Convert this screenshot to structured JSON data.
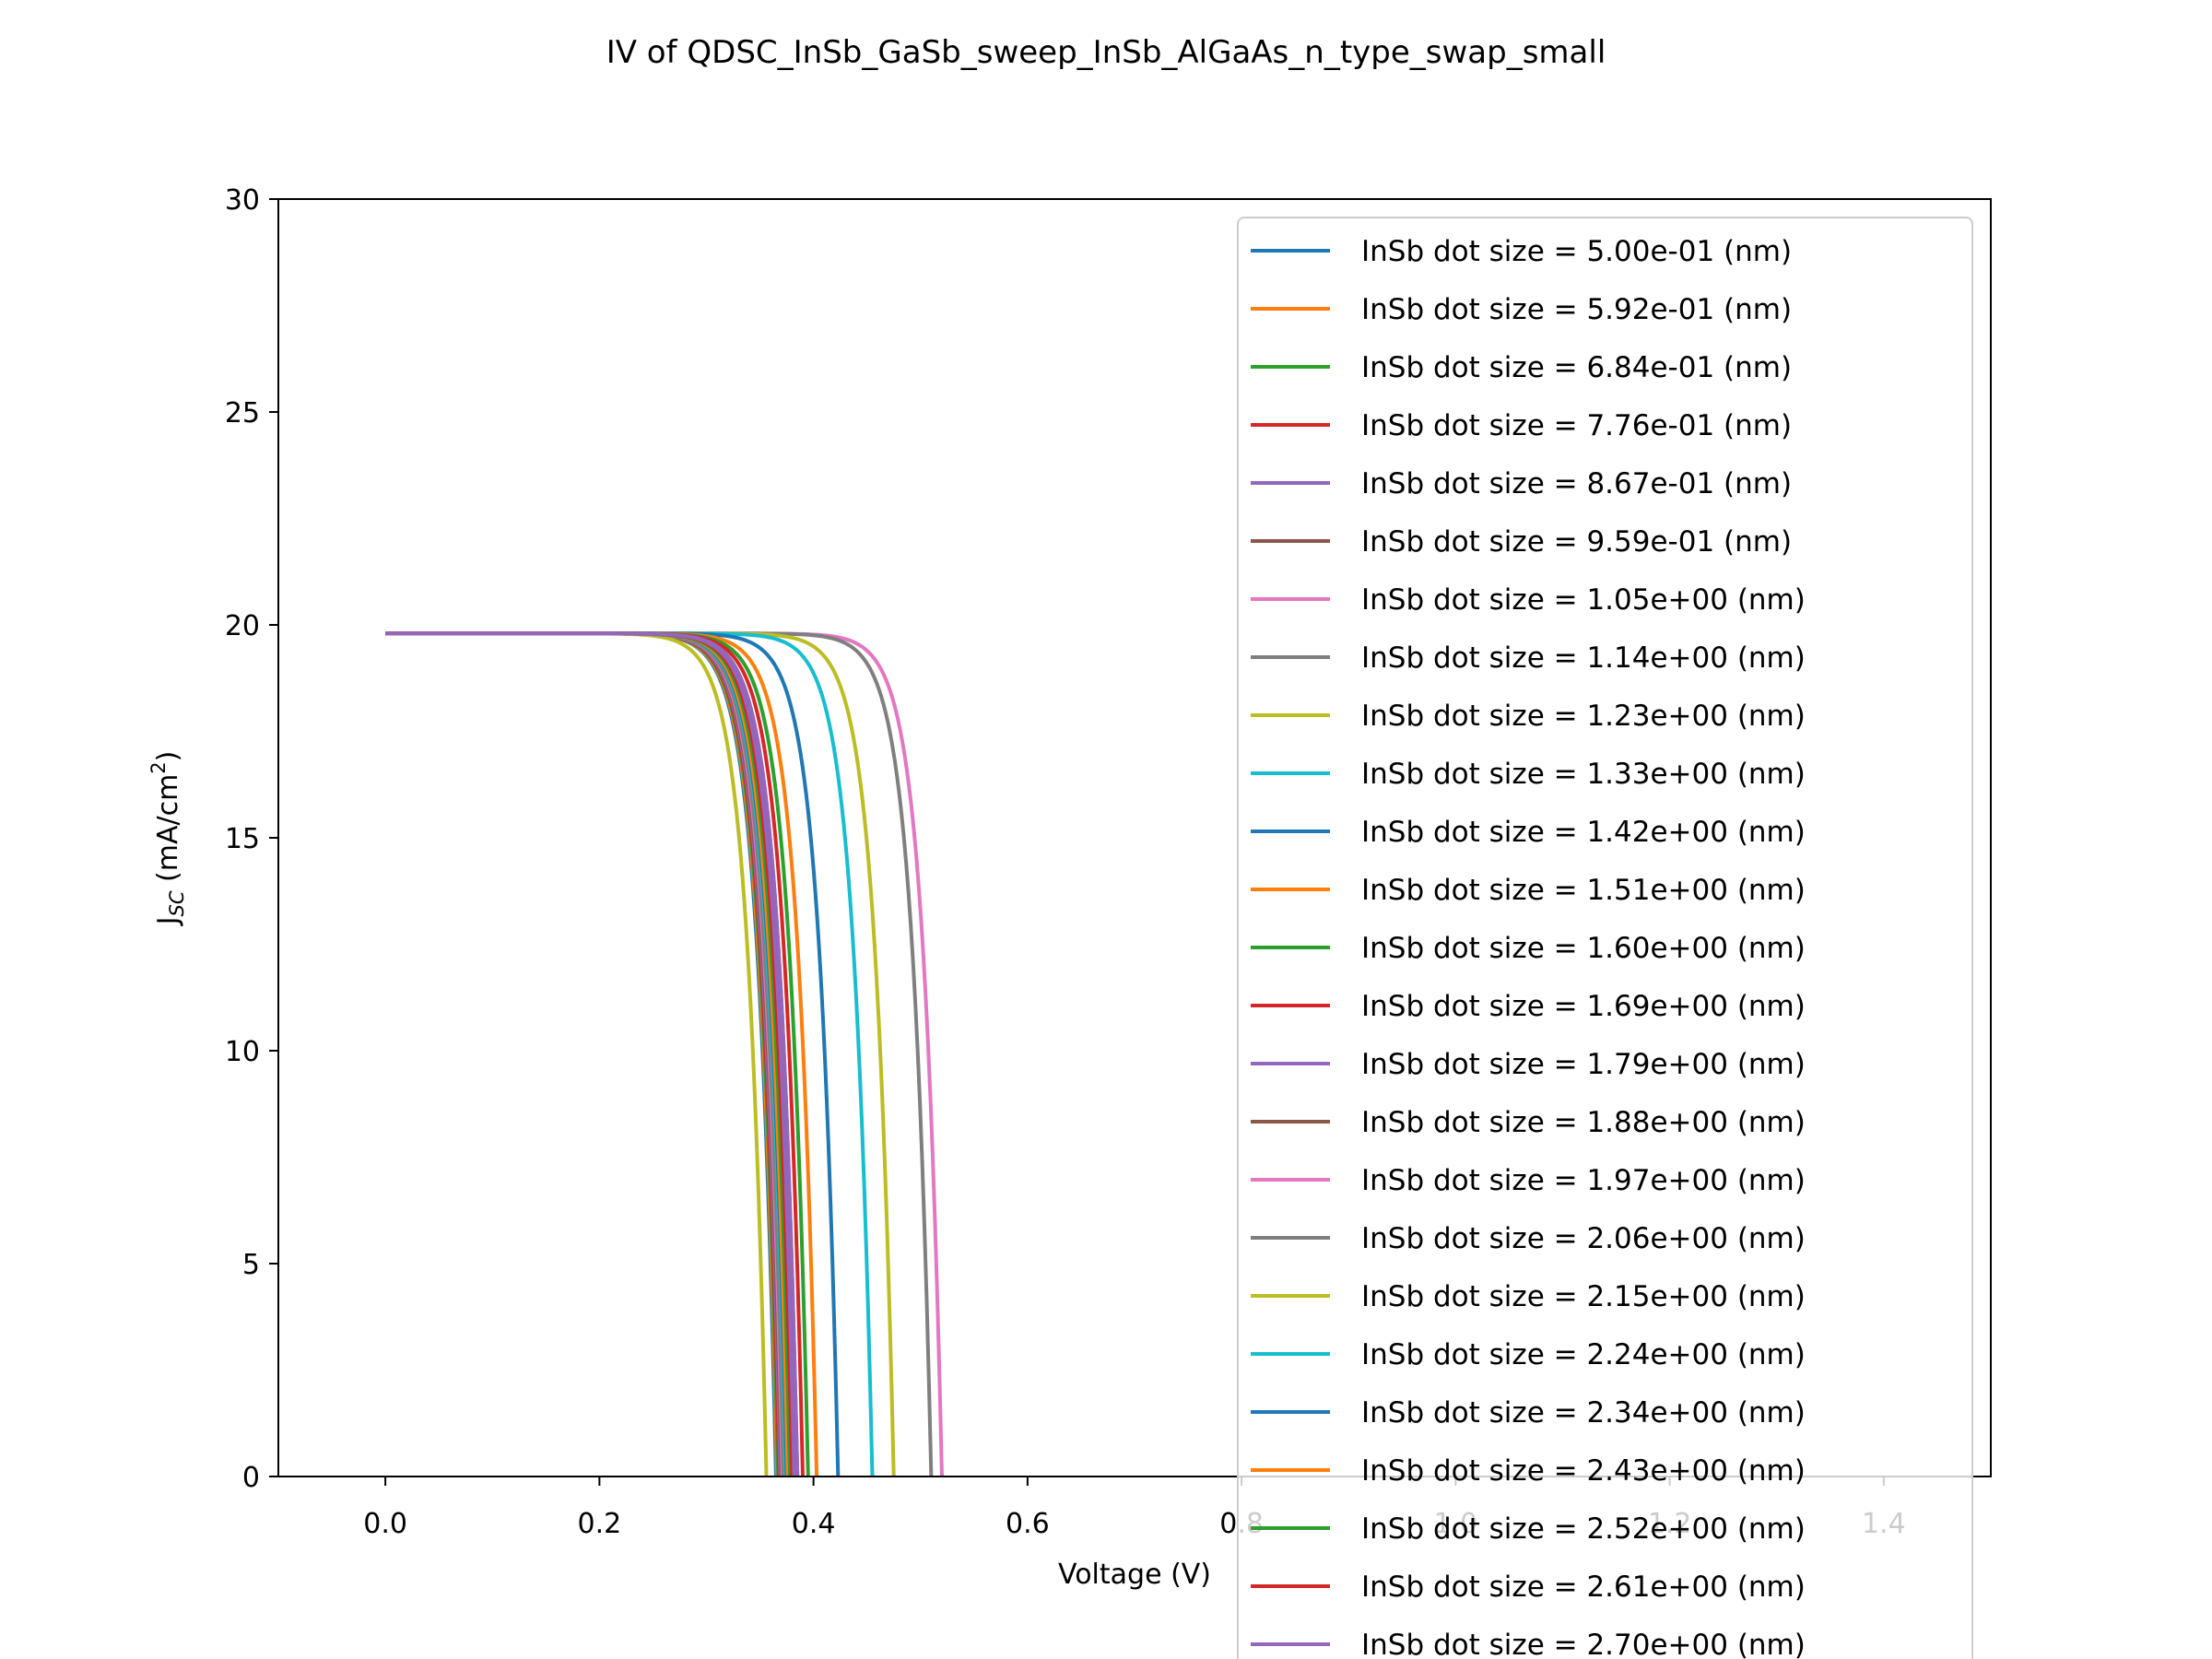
{
  "chart_data": {
    "type": "line",
    "title": "IV of QDSC_InSb_GaSb_sweep_InSb_AlGaAs_n_type_swap_small",
    "xlabel": "Voltage (V)",
    "ylabel": "J_SC (mA/cm²)",
    "ylabel_main": "J",
    "ylabel_sub": "SC",
    "ylabel_units": " (mA/cm",
    "ylabel_sup": "2",
    "ylabel_close": ")",
    "xlim": [
      -0.1,
      1.5
    ],
    "ylim": [
      0,
      30
    ],
    "x_ticks": [
      0.0,
      0.2,
      0.4,
      0.6,
      0.8,
      1.0,
      1.2,
      1.4
    ],
    "x_tick_labels": [
      "0.0",
      "0.2",
      "0.4",
      "0.6",
      "0.8",
      "1.0",
      "1.2",
      "1.4"
    ],
    "y_ticks": [
      0,
      5,
      10,
      15,
      20,
      25,
      30
    ],
    "y_tick_labels": [
      "0",
      "5",
      "10",
      "15",
      "20",
      "25",
      "30"
    ],
    "grid": false,
    "legend_position": "top-right",
    "jsc": 19.8,
    "series": [
      {
        "name": "InSb dot size = 5.00e-01 (nm)",
        "color": "#1f77b4",
        "voc": 0.365
      },
      {
        "name": "InSb dot size = 5.92e-01 (nm)",
        "color": "#ff7f0e",
        "voc": 0.366
      },
      {
        "name": "InSb dot size = 6.84e-01 (nm)",
        "color": "#2ca02c",
        "voc": 0.367
      },
      {
        "name": "InSb dot size = 7.76e-01 (nm)",
        "color": "#d62728",
        "voc": 0.368
      },
      {
        "name": "InSb dot size = 8.67e-01 (nm)",
        "color": "#9467bd",
        "voc": 0.369
      },
      {
        "name": "InSb dot size = 9.59e-01 (nm)",
        "color": "#8c564b",
        "voc": 0.37
      },
      {
        "name": "InSb dot size = 1.05e+00 (nm)",
        "color": "#e377c2",
        "voc": 0.371
      },
      {
        "name": "InSb dot size = 1.14e+00 (nm)",
        "color": "#7f7f7f",
        "voc": 0.372
      },
      {
        "name": "InSb dot size = 1.23e+00 (nm)",
        "color": "#bcbd22",
        "voc": 0.356
      },
      {
        "name": "InSb dot size = 1.33e+00 (nm)",
        "color": "#17becf",
        "voc": 0.374
      },
      {
        "name": "InSb dot size = 1.42e+00 (nm)",
        "color": "#1f77b4",
        "voc": 0.375
      },
      {
        "name": "InSb dot size = 1.51e+00 (nm)",
        "color": "#ff7f0e",
        "voc": 0.376
      },
      {
        "name": "InSb dot size = 1.60e+00 (nm)",
        "color": "#2ca02c",
        "voc": 0.378
      },
      {
        "name": "InSb dot size = 1.69e+00 (nm)",
        "color": "#d62728",
        "voc": 0.38
      },
      {
        "name": "InSb dot size = 1.79e+00 (nm)",
        "color": "#9467bd",
        "voc": 0.382
      },
      {
        "name": "InSb dot size = 1.88e+00 (nm)",
        "color": "#8c564b",
        "voc": 0.385
      },
      {
        "name": "InSb dot size = 1.97e+00 (nm)",
        "color": "#e377c2",
        "voc": 0.52
      },
      {
        "name": "InSb dot size = 2.06e+00 (nm)",
        "color": "#7f7f7f",
        "voc": 0.51
      },
      {
        "name": "InSb dot size = 2.15e+00 (nm)",
        "color": "#bcbd22",
        "voc": 0.475
      },
      {
        "name": "InSb dot size = 2.24e+00 (nm)",
        "color": "#17becf",
        "voc": 0.455
      },
      {
        "name": "InSb dot size = 2.34e+00 (nm)",
        "color": "#1f77b4",
        "voc": 0.423
      },
      {
        "name": "InSb dot size = 2.43e+00 (nm)",
        "color": "#ff7f0e",
        "voc": 0.403
      },
      {
        "name": "InSb dot size = 2.52e+00 (nm)",
        "color": "#2ca02c",
        "voc": 0.395
      },
      {
        "name": "InSb dot size = 2.61e+00 (nm)",
        "color": "#d62728",
        "voc": 0.39
      },
      {
        "name": "InSb dot size = 2.70e+00 (nm)",
        "color": "#9467bd",
        "voc": 0.385
      }
    ]
  }
}
